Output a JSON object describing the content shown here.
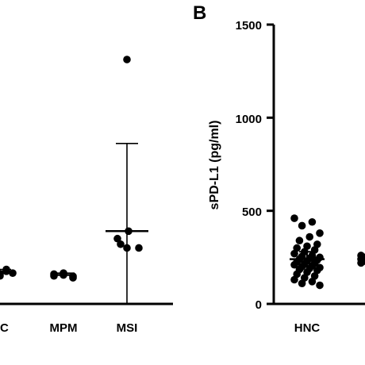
{
  "chart_data": [
    {
      "panel": "A",
      "type": "scatter",
      "categories": [
        "C",
        "MPM",
        "MSI"
      ],
      "points": {
        "C": [
          185,
          170,
          155,
          160,
          175,
          150,
          165,
          160
        ],
        "MPM": [
          150,
          165,
          140,
          160,
          155,
          148
        ],
        "MSI": [
          1310,
          350,
          300,
          300,
          320,
          390
        ],
        "MSI_extra": []
      },
      "means": {
        "C": 175,
        "MPM": 155,
        "MSI": 390
      },
      "errors": {
        "C": [
          165,
          185
        ],
        "MPM": [
          145,
          165
        ],
        "MSI": [
          0,
          860
        ]
      },
      "show_panel_letter": false
    },
    {
      "panel": "B",
      "type": "scatter",
      "title": "",
      "ylabel": "sPD-L1 (pg/ml)",
      "ylim": [
        0,
        1500
      ],
      "yticks": [
        "0",
        "500",
        "1000",
        "1500"
      ],
      "categories": [
        "HNC"
      ],
      "points": {
        "HNC": [
          460,
          440,
          420,
          380,
          360,
          340,
          320,
          310,
          300,
          290,
          280,
          270,
          260,
          255,
          250,
          245,
          240,
          235,
          230,
          225,
          220,
          215,
          210,
          205,
          200,
          195,
          190,
          185,
          180,
          170,
          160,
          150,
          140,
          130,
          120,
          110,
          100
        ],
        "second_group": [
          260,
          250,
          240,
          230,
          220
        ]
      },
      "means": {
        "HNC": 240
      },
      "errors": {
        "HNC": [
          200,
          280
        ]
      }
    }
  ],
  "labels": {
    "panel_b_letter": "B",
    "a_cat_c": "C",
    "a_cat_mpm": "MPM",
    "a_cat_msi": "MSI",
    "b_cat_hnc": "HNC",
    "b_ylabel": "sPD-L1 (pg/ml)",
    "b_tick_0": "0",
    "b_tick_500": "500",
    "b_tick_1000": "1000",
    "b_tick_1500": "1500"
  }
}
